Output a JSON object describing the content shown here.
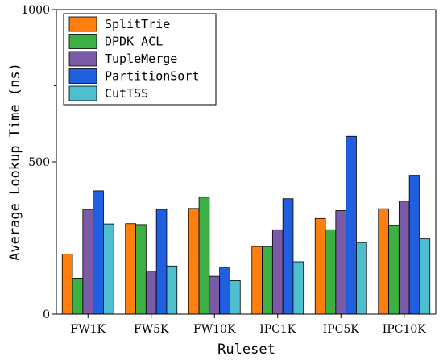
{
  "chart_data": {
    "type": "bar",
    "title": "",
    "xlabel": "Ruleset",
    "ylabel": "Average Lookup Time (ns)",
    "ylim": [
      0,
      1000
    ],
    "yticks": [
      0,
      500,
      1000
    ],
    "grid": false,
    "legend_position": "top-left",
    "categories": [
      "FW1K",
      "FW5K",
      "FW10K",
      "IPC1K",
      "IPC5K",
      "IPC10K"
    ],
    "series": [
      {
        "name": "SplitTrie",
        "color": "#FF7F0E",
        "values": [
          197,
          297,
          347,
          222,
          314,
          346
        ]
      },
      {
        "name": "DPDK ACL",
        "color": "#3CB043",
        "values": [
          118,
          294,
          384,
          222,
          277,
          292
        ]
      },
      {
        "name": "TupleMerge",
        "color": "#7B5AA6",
        "values": [
          344,
          141,
          124,
          277,
          340,
          371
        ]
      },
      {
        "name": "PartitionSort",
        "color": "#1F5FE0",
        "values": [
          405,
          344,
          154,
          379,
          584,
          456
        ]
      },
      {
        "name": "CutTSS",
        "color": "#4DBFCF",
        "values": [
          296,
          158,
          110,
          172,
          235,
          247
        ]
      }
    ]
  }
}
